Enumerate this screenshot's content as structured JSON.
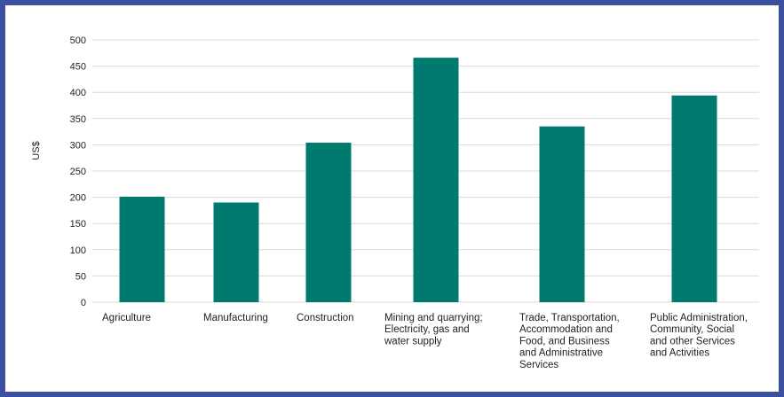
{
  "chart_data": {
    "type": "bar",
    "title": "",
    "xlabel": "",
    "ylabel": "US$",
    "ylim": [
      0,
      500
    ],
    "yticks": [
      0,
      50,
      100,
      150,
      200,
      250,
      300,
      350,
      400,
      450,
      500
    ],
    "grid": true,
    "legend": "none",
    "bar_color": "#007a6e",
    "grid_color": "#d9d9d9",
    "border_color": "#3d4f9f",
    "categories": [
      [
        "Agriculture"
      ],
      [
        "Manufacturing"
      ],
      [
        "Construction"
      ],
      [
        "Mining and quarrying;",
        "Electricity, gas and",
        "water supply"
      ],
      [
        "Trade, Transportation,",
        "Accommodation and",
        "Food, and Business",
        "and Administrative",
        "Services"
      ],
      [
        "Public Administration,",
        "Community, Social",
        "and other Services",
        "and Activities"
      ]
    ],
    "values": [
      201,
      190,
      304,
      466,
      335,
      394
    ]
  }
}
